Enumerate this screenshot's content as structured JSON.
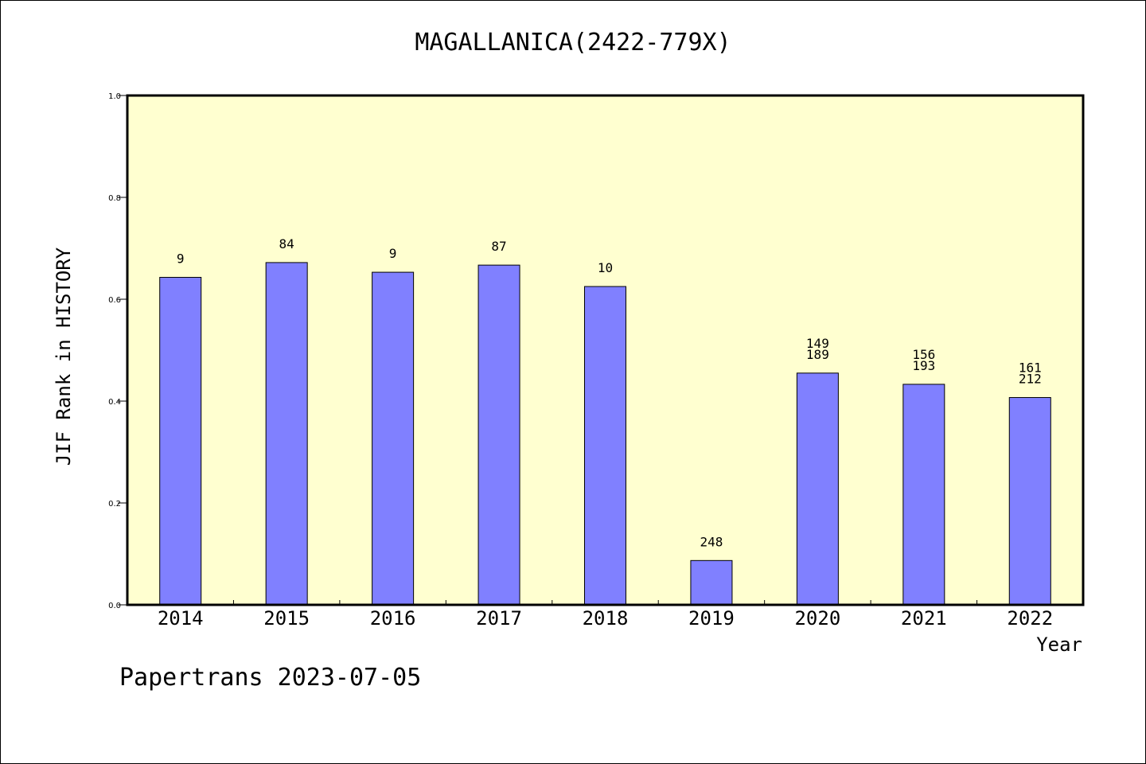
{
  "chart_data": {
    "type": "bar",
    "title": "MAGALLANICA(2422-779X)",
    "ylabel": "JIF Rank in HISTORY",
    "xlabel": "Year",
    "ylim": [
      0,
      1.0
    ],
    "yticks": [
      "0.0",
      "0.2",
      "0.4",
      "0.6",
      "0.8",
      "1.0"
    ],
    "categories": [
      "2014",
      "2015",
      "2016",
      "2017",
      "2018",
      "2019",
      "2020",
      "2021",
      "2022"
    ],
    "values": [
      0.643,
      0.672,
      0.653,
      0.667,
      0.625,
      0.087,
      0.455,
      0.433,
      0.407
    ],
    "labels": [
      [
        "9"
      ],
      [
        "84"
      ],
      [
        "9"
      ],
      [
        "87"
      ],
      [
        "10"
      ],
      [
        "248"
      ],
      [
        "149",
        "189"
      ],
      [
        "156",
        "193"
      ],
      [
        "161",
        "212"
      ]
    ],
    "colors": {
      "plot_background": "#ffffd0",
      "bar_fill": "#8080ff",
      "bar_stroke": "#000000"
    },
    "grid": false,
    "legend": "none"
  },
  "footer": "Papertrans 2023-07-05"
}
